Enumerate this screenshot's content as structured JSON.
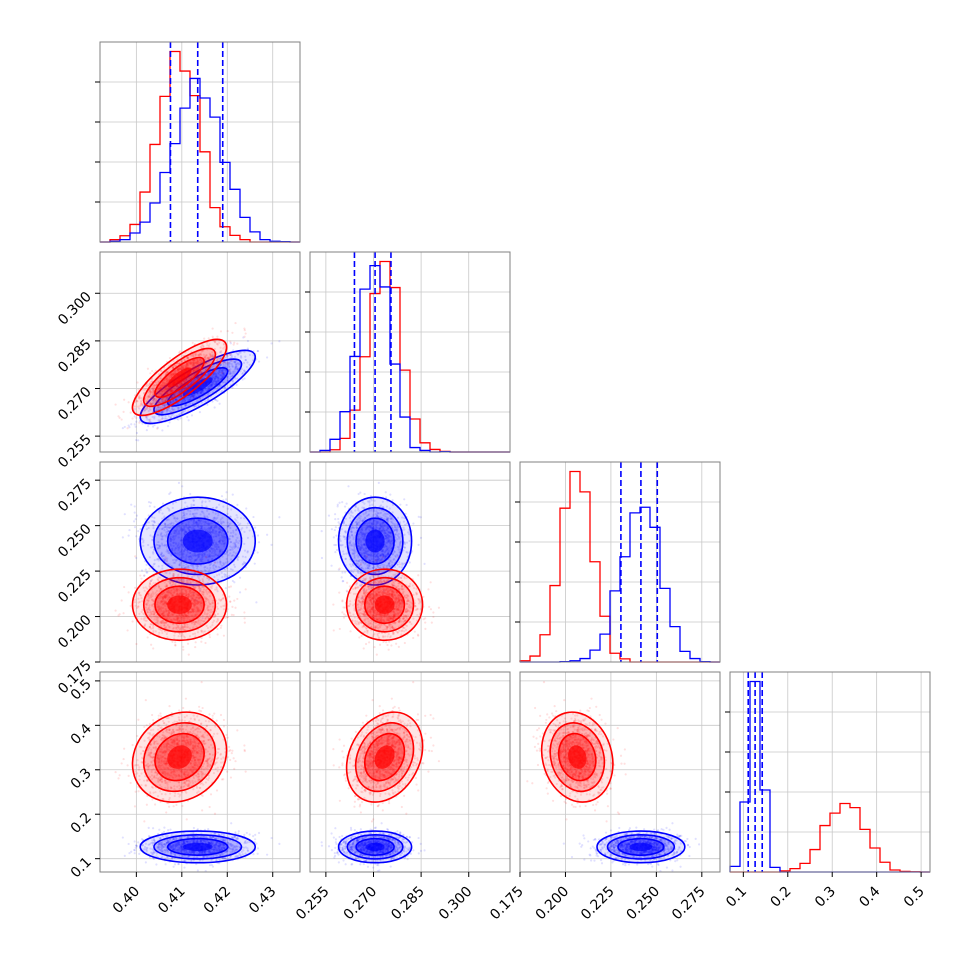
{
  "chart_data": {
    "type": "corner",
    "parameters": [
      {
        "ticks": [
          0.4,
          0.41,
          0.42,
          0.43
        ],
        "tick_labels": [
          "0.40",
          "0.41",
          "0.42",
          "0.43"
        ],
        "range": [
          0.392,
          0.436
        ]
      },
      {
        "ticks": [
          0.255,
          0.27,
          0.285,
          0.3
        ],
        "tick_labels": [
          "0.255",
          "0.270",
          "0.285",
          "0.300"
        ],
        "range": [
          0.25,
          0.313
        ]
      },
      {
        "ticks": [
          0.175,
          0.2,
          0.225,
          0.25,
          0.275
        ],
        "tick_labels": [
          "0.175",
          "0.200",
          "0.225",
          "0.250",
          "0.275"
        ],
        "range": [
          0.175,
          0.285
        ]
      },
      {
        "ticks": [
          0.1,
          0.2,
          0.3,
          0.4,
          0.5
        ],
        "tick_labels": [
          "0.1",
          "0.2",
          "0.3",
          "0.4",
          "0.5"
        ],
        "range": [
          0.07,
          0.52
        ]
      }
    ],
    "series": [
      {
        "color": "#0000ff",
        "mean": [
          0.4135,
          0.2705,
          0.2415,
          0.1265
        ],
        "std": [
          0.0055,
          0.005,
          0.0105,
          0.0155
        ],
        "corr": [
          0.82,
          0.0,
          0.0,
          0.0,
          0.0,
          0.0
        ],
        "quantiles": [
          [
            0.4075,
            0.4135,
            0.419
          ],
          [
            0.264,
            0.2705,
            0.2755
          ],
          [
            0.2305,
            0.2415,
            0.2505
          ],
          [
            0.111,
            0.1265,
            0.1425
          ]
        ]
      },
      {
        "color": "#ff0000",
        "mean": [
          0.4095,
          0.2735,
          0.2065,
          0.3285
        ],
        "std": [
          0.0045,
          0.0052,
          0.0085,
          0.044
        ],
        "corr": [
          0.8,
          0.0,
          0.15,
          0.0,
          0.25,
          -0.15
        ],
        "quantiles": null
      }
    ],
    "grid": true,
    "quantile_line_color": "#0000ff"
  }
}
